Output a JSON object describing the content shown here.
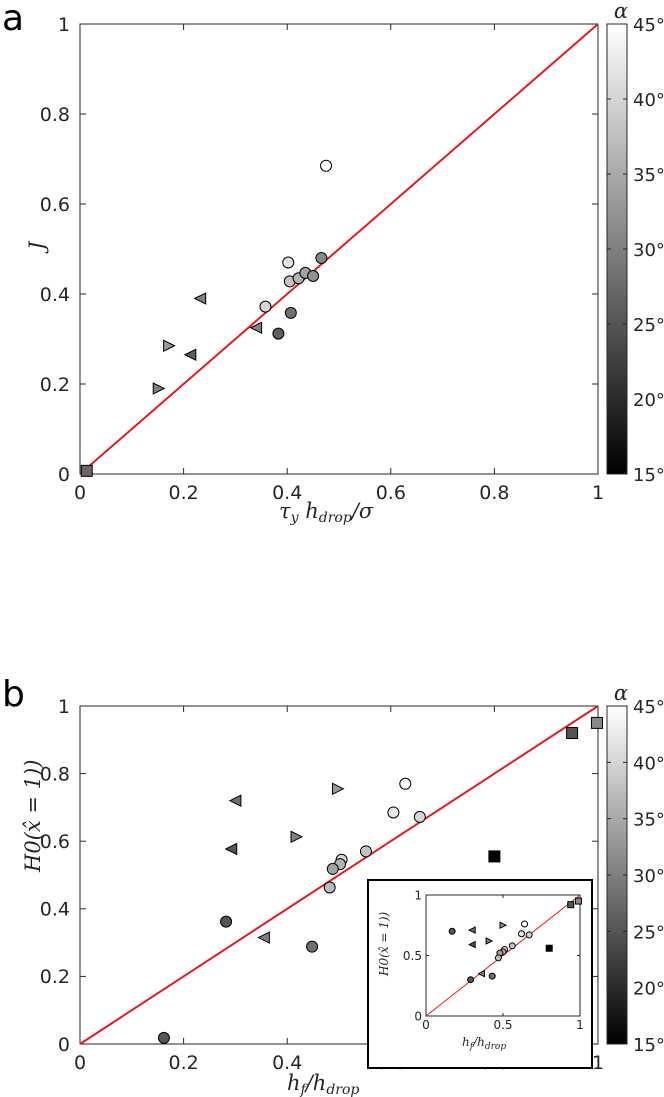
{
  "panels": {
    "a": "a",
    "b": "b"
  },
  "colorbar": {
    "label": "α",
    "min": 15,
    "max": 45,
    "ticks": [
      "15°",
      "20°",
      "25°",
      "30°",
      "35°",
      "40°",
      "45°"
    ]
  },
  "chart_data": [
    {
      "type": "scatter",
      "panel": "a",
      "xlabel": "τy hdrop/σ",
      "ylabel": "J",
      "xlim": [
        0,
        1
      ],
      "ylim": [
        0,
        1
      ],
      "xticks": [
        "0",
        "0.2",
        "0.4",
        "0.6",
        "0.8",
        "1"
      ],
      "yticks": [
        "0",
        "0.2",
        "0.4",
        "0.6",
        "0.8",
        "1"
      ],
      "reference_line": {
        "from": [
          0,
          0
        ],
        "to": [
          1,
          1
        ],
        "color": "#e41a1c"
      },
      "points": [
        {
          "x": 0.475,
          "y": 0.685,
          "marker": "circle",
          "alpha": 45
        },
        {
          "x": 0.402,
          "y": 0.47,
          "marker": "circle",
          "alpha": 42
        },
        {
          "x": 0.358,
          "y": 0.372,
          "marker": "circle",
          "alpha": 40
        },
        {
          "x": 0.405,
          "y": 0.428,
          "marker": "circle",
          "alpha": 38
        },
        {
          "x": 0.422,
          "y": 0.435,
          "marker": "circle",
          "alpha": 36
        },
        {
          "x": 0.435,
          "y": 0.447,
          "marker": "circle",
          "alpha": 34
        },
        {
          "x": 0.45,
          "y": 0.44,
          "marker": "circle",
          "alpha": 32
        },
        {
          "x": 0.466,
          "y": 0.48,
          "marker": "circle",
          "alpha": 31
        },
        {
          "x": 0.407,
          "y": 0.358,
          "marker": "circle",
          "alpha": 28
        },
        {
          "x": 0.383,
          "y": 0.312,
          "marker": "circle",
          "alpha": 26
        },
        {
          "x": 0.232,
          "y": 0.39,
          "marker": "triangle-left",
          "alpha": 30
        },
        {
          "x": 0.34,
          "y": 0.325,
          "marker": "triangle-left",
          "alpha": 30
        },
        {
          "x": 0.213,
          "y": 0.265,
          "marker": "triangle-left",
          "alpha": 26
        },
        {
          "x": 0.172,
          "y": 0.285,
          "marker": "triangle-right",
          "alpha": 33
        },
        {
          "x": 0.152,
          "y": 0.19,
          "marker": "triangle-right",
          "alpha": 30
        },
        {
          "x": 0.013,
          "y": 0.007,
          "marker": "square",
          "alpha": 27
        }
      ]
    },
    {
      "type": "scatter",
      "panel": "b",
      "xlabel": "hf/hdrop",
      "ylabel": "H0(x̂ = 1))",
      "xlim": [
        0,
        1
      ],
      "ylim": [
        0,
        1
      ],
      "xticks": [
        "0",
        "0.2",
        "0.4",
        "0.6",
        "0.8",
        "1"
      ],
      "yticks": [
        "0",
        "0.2",
        "0.4",
        "0.6",
        "0.8",
        "1"
      ],
      "reference_line": {
        "from": [
          0,
          0
        ],
        "to": [
          1,
          1
        ],
        "color": "#e41a1c"
      },
      "points": [
        {
          "x": 0.628,
          "y": 0.77,
          "marker": "circle",
          "alpha": 45
        },
        {
          "x": 0.605,
          "y": 0.685,
          "marker": "circle",
          "alpha": 42
        },
        {
          "x": 0.656,
          "y": 0.672,
          "marker": "circle",
          "alpha": 40
        },
        {
          "x": 0.552,
          "y": 0.57,
          "marker": "circle",
          "alpha": 38
        },
        {
          "x": 0.505,
          "y": 0.545,
          "marker": "circle",
          "alpha": 40
        },
        {
          "x": 0.502,
          "y": 0.532,
          "marker": "circle",
          "alpha": 36
        },
        {
          "x": 0.488,
          "y": 0.518,
          "marker": "circle",
          "alpha": 34
        },
        {
          "x": 0.482,
          "y": 0.463,
          "marker": "circle",
          "alpha": 37
        },
        {
          "x": 0.448,
          "y": 0.288,
          "marker": "circle",
          "alpha": 28
        },
        {
          "x": 0.282,
          "y": 0.362,
          "marker": "circle",
          "alpha": 25
        },
        {
          "x": 0.162,
          "y": 0.018,
          "marker": "circle",
          "alpha": 25
        },
        {
          "x": 0.3,
          "y": 0.72,
          "marker": "triangle-left",
          "alpha": 28
        },
        {
          "x": 0.292,
          "y": 0.577,
          "marker": "triangle-left",
          "alpha": 25
        },
        {
          "x": 0.355,
          "y": 0.315,
          "marker": "triangle-left",
          "alpha": 30
        },
        {
          "x": 0.498,
          "y": 0.755,
          "marker": "triangle-right",
          "alpha": 33
        },
        {
          "x": 0.418,
          "y": 0.613,
          "marker": "triangle-right",
          "alpha": 30
        },
        {
          "x": 0.95,
          "y": 0.92,
          "marker": "square",
          "alpha": 25
        },
        {
          "x": 0.998,
          "y": 0.95,
          "marker": "square",
          "alpha": 31
        },
        {
          "x": 0.8,
          "y": 0.555,
          "marker": "square",
          "alpha": 15
        }
      ],
      "inset": {
        "xlabel": "hf/hdrop",
        "ylabel": "H0(x̂ = 1))",
        "xlim": [
          0,
          1
        ],
        "ylim": [
          0,
          1
        ],
        "xticks": [
          "0",
          "0.5",
          "1"
        ],
        "yticks": [
          "0",
          "0.5",
          "1"
        ],
        "points": [
          {
            "x": 0.64,
            "y": 0.76,
            "marker": "circle",
            "alpha": 45
          },
          {
            "x": 0.62,
            "y": 0.68,
            "marker": "circle",
            "alpha": 42
          },
          {
            "x": 0.67,
            "y": 0.67,
            "marker": "circle",
            "alpha": 40
          },
          {
            "x": 0.56,
            "y": 0.58,
            "marker": "circle",
            "alpha": 38
          },
          {
            "x": 0.51,
            "y": 0.55,
            "marker": "circle",
            "alpha": 40
          },
          {
            "x": 0.5,
            "y": 0.53,
            "marker": "circle",
            "alpha": 36
          },
          {
            "x": 0.48,
            "y": 0.52,
            "marker": "circle",
            "alpha": 34
          },
          {
            "x": 0.47,
            "y": 0.48,
            "marker": "circle",
            "alpha": 37
          },
          {
            "x": 0.43,
            "y": 0.33,
            "marker": "circle",
            "alpha": 28
          },
          {
            "x": 0.29,
            "y": 0.3,
            "marker": "circle",
            "alpha": 25
          },
          {
            "x": 0.17,
            "y": 0.7,
            "marker": "circle",
            "alpha": 25
          },
          {
            "x": 0.3,
            "y": 0.71,
            "marker": "triangle-left",
            "alpha": 28
          },
          {
            "x": 0.3,
            "y": 0.59,
            "marker": "triangle-left",
            "alpha": 25
          },
          {
            "x": 0.36,
            "y": 0.35,
            "marker": "triangle-left",
            "alpha": 30
          },
          {
            "x": 0.5,
            "y": 0.75,
            "marker": "triangle-right",
            "alpha": 33
          },
          {
            "x": 0.41,
            "y": 0.62,
            "marker": "triangle-right",
            "alpha": 30
          },
          {
            "x": 0.94,
            "y": 0.92,
            "marker": "square",
            "alpha": 25
          },
          {
            "x": 0.99,
            "y": 0.95,
            "marker": "square",
            "alpha": 31
          },
          {
            "x": 0.8,
            "y": 0.56,
            "marker": "square",
            "alpha": 15
          }
        ]
      }
    }
  ]
}
